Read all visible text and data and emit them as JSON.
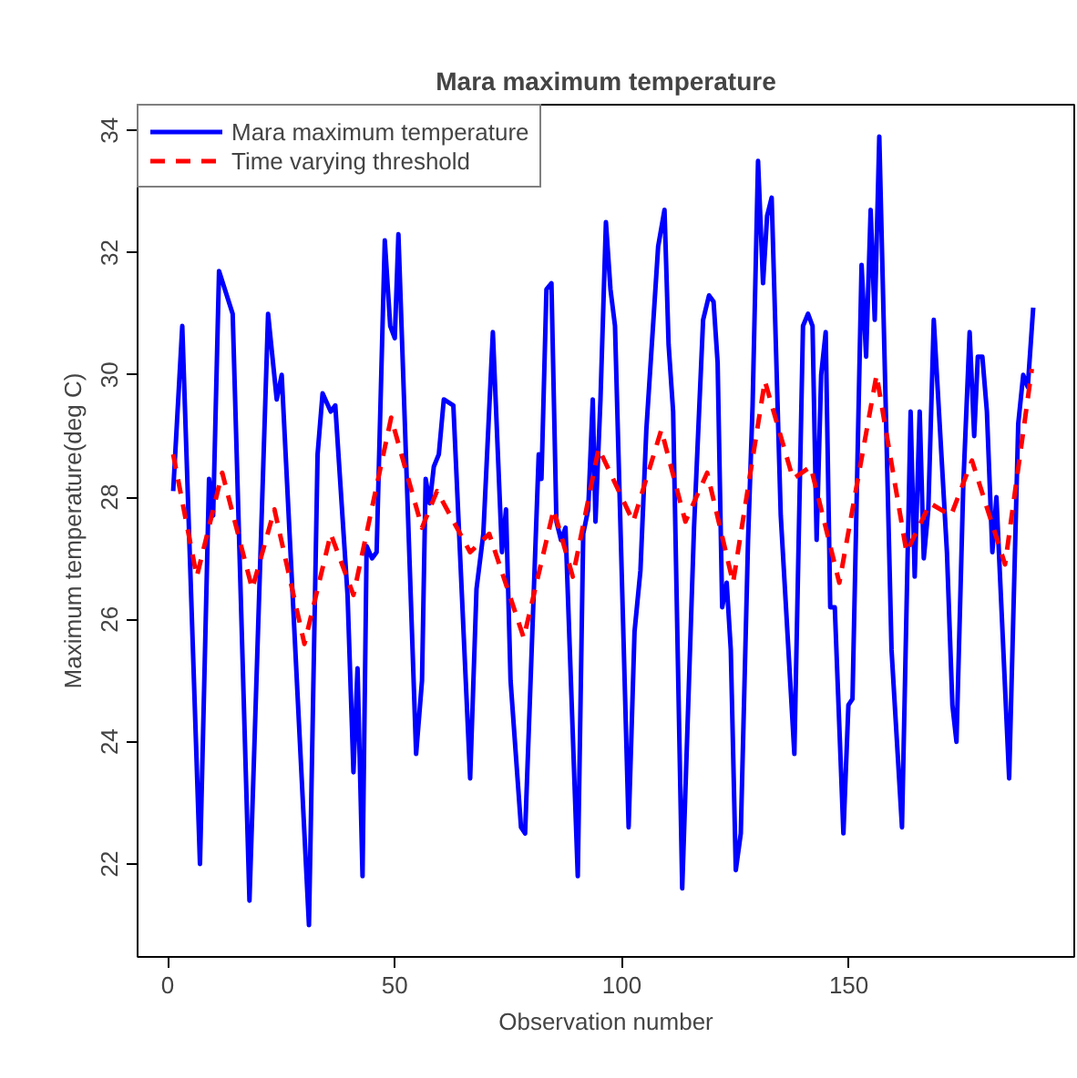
{
  "chart_data": {
    "type": "line",
    "title": "Mara maximum temperature",
    "xlabel": "Observation number",
    "ylabel": "Maximum temperature(deg C)",
    "xlim": [
      -6.64,
      199.64
    ],
    "ylim": [
      20.48,
      34.42
    ],
    "xticks": [
      0,
      50,
      100,
      150
    ],
    "yticks": [
      22,
      24,
      26,
      28,
      30,
      32,
      34
    ],
    "grid": false,
    "legend": "top left",
    "series": [
      {
        "name": "Mara maximum temperature",
        "color": "#0000ff",
        "line_style": "solid",
        "x": [
          1.2,
          3.2,
          7.1,
          9.1,
          10,
          11.3,
          14.3,
          18,
          22.1,
          24,
          25.1,
          26.3,
          31.1,
          33,
          34.1,
          35.9,
          36.9,
          39.6,
          40.9,
          41.8,
          42.9,
          43.8,
          45,
          46,
          47.8,
          49,
          50,
          50.8,
          54.7,
          56,
          56.8,
          57.7,
          58.6,
          59.7,
          60.8,
          62.9,
          66.6,
          68,
          69.5,
          71.6,
          73.6,
          74.5,
          75.5,
          77.8,
          78.7,
          81.7,
          82.3,
          83.4,
          84.5,
          85.6,
          86.6,
          87.6,
          90.3,
          91.5,
          92.6,
          93.6,
          94.2,
          95.3,
          96.5,
          97.5,
          98.5,
          101.5,
          102.8,
          104.1,
          105.4,
          108,
          109.4,
          110.3,
          111.3,
          113.3,
          115.9,
          117.9,
          119.2,
          120.2,
          121.1,
          122.1,
          123.1,
          124,
          125.1,
          126.2,
          127.8,
          128.8,
          130,
          131.1,
          132,
          133,
          135,
          138,
          139.9,
          141,
          142,
          142.9,
          143.9,
          144.9,
          145.9,
          146.9,
          148.8,
          149.9,
          150.8,
          152.8,
          153.8,
          154.8,
          155.7,
          156.7,
          159.4,
          161.7,
          163.6,
          164.5,
          165.6,
          166.5,
          167.5,
          168.7,
          171.6,
          172.8,
          173.7,
          175.2,
          176.6,
          177.6,
          178.4,
          179.4,
          180.4,
          181.6,
          182.5,
          185.3,
          187.3,
          188.4,
          189.4,
          190.6
        ],
        "values": [
          28.1,
          30.8,
          22.0,
          28.3,
          27.7,
          31.7,
          31.0,
          21.4,
          31.0,
          29.6,
          30.0,
          28.2,
          21.0,
          28.7,
          29.7,
          29.4,
          29.5,
          26.4,
          23.5,
          25.2,
          21.8,
          27.2,
          27.0,
          27.1,
          32.2,
          30.8,
          30.6,
          32.3,
          23.8,
          25.0,
          28.3,
          27.9,
          28.5,
          28.7,
          29.6,
          29.5,
          23.4,
          26.5,
          27.4,
          30.7,
          27.1,
          27.8,
          25.0,
          22.6,
          22.5,
          28.7,
          28.3,
          31.4,
          31.5,
          27.6,
          27.3,
          27.5,
          21.8,
          27.4,
          27.8,
          29.6,
          27.6,
          29.6,
          32.5,
          31.4,
          30.8,
          22.6,
          25.8,
          26.8,
          29.1,
          32.1,
          32.7,
          30.5,
          29.4,
          21.6,
          27.5,
          30.9,
          31.3,
          31.2,
          30.2,
          26.2,
          26.6,
          25.5,
          21.9,
          22.5,
          27.3,
          29.5,
          33.5,
          31.5,
          32.6,
          32.9,
          27.7,
          23.8,
          30.8,
          31.0,
          30.8,
          27.3,
          30.0,
          30.7,
          26.2,
          26.2,
          22.5,
          24.6,
          24.7,
          31.8,
          30.3,
          32.7,
          30.9,
          33.9,
          25.5,
          22.6,
          29.4,
          26.7,
          29.4,
          27.0,
          27.8,
          30.9,
          27.1,
          24.6,
          24.0,
          28.2,
          30.7,
          29.0,
          30.3,
          30.3,
          29.4,
          27.1,
          28.0,
          23.4,
          29.2,
          30.0,
          29.8,
          31.1
        ]
      },
      {
        "name": "Time varying threshold",
        "color": "#ff0000",
        "line_style": "dashed",
        "x": [
          1.2,
          6.4,
          12,
          18.6,
          23.5,
          30.1,
          35.9,
          40.9,
          49.2,
          56,
          59.3,
          66.6,
          70.8,
          78.4,
          85,
          89.2,
          94.9,
          102.5,
          108.7,
          114,
          118.8,
          124.5,
          131.5,
          137.7,
          141.6,
          147.9,
          156.1,
          162.7,
          167.9,
          172.5,
          177.1,
          184.4,
          190.3
        ],
        "values": [
          28.7,
          26.7,
          28.4,
          26.5,
          27.8,
          25.6,
          27.4,
          26.4,
          29.3,
          27.5,
          28.1,
          27.1,
          27.4,
          25.7,
          27.8,
          26.7,
          28.8,
          27.6,
          29.1,
          27.6,
          28.4,
          26.6,
          29.9,
          28.3,
          28.5,
          26.6,
          30.0,
          27.1,
          27.9,
          27.7,
          28.6,
          26.9,
          30.1
        ]
      }
    ]
  }
}
